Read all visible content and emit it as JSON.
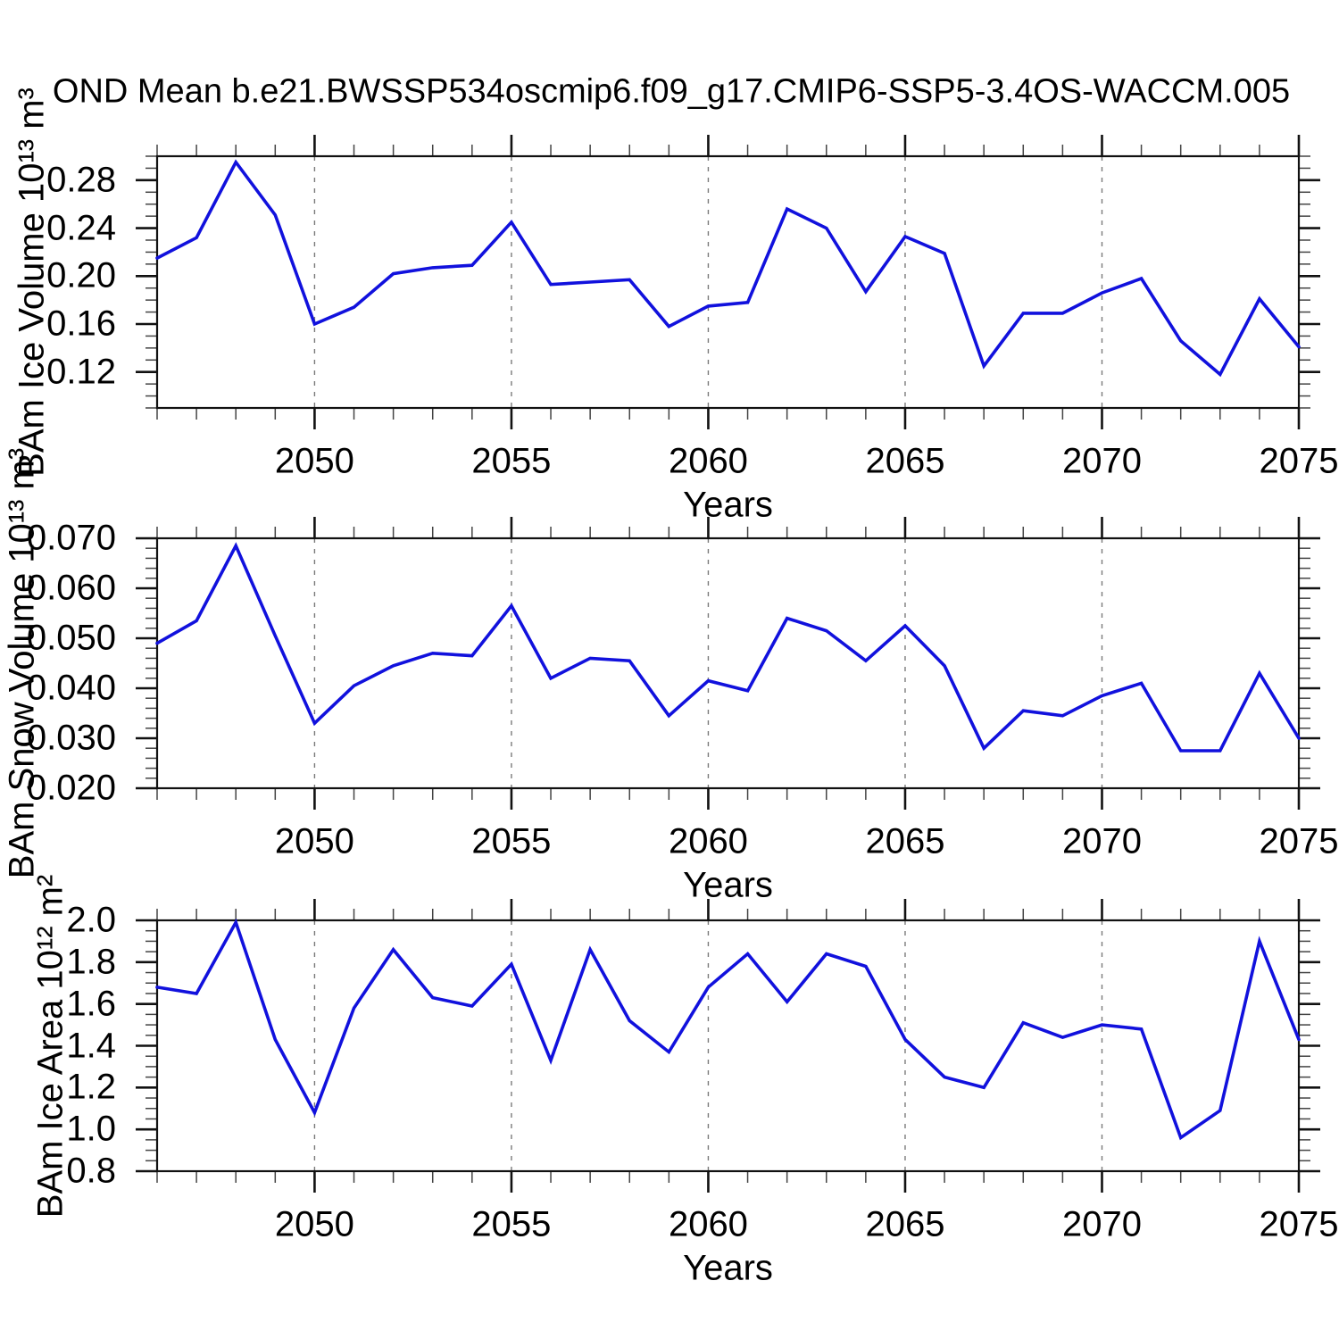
{
  "title": "OND Mean b.e21.BWSSP534oscmip6.f09_g17.CMIP6-SSP5-3.4OS-WACCM.005",
  "colors": {
    "line": "#1111dd",
    "axis": "#111111",
    "minor_tick": "#444444",
    "gridline": "#7a7a7a",
    "text": "#000000"
  },
  "chart_data": [
    {
      "type": "line",
      "ylabel": "BAm Ice Volume 10¹³ m³",
      "xlabel": "Years",
      "x": [
        2046,
        2047,
        2048,
        2049,
        2050,
        2051,
        2052,
        2053,
        2054,
        2055,
        2056,
        2057,
        2058,
        2059,
        2060,
        2061,
        2062,
        2063,
        2064,
        2065,
        2066,
        2067,
        2068,
        2069,
        2070,
        2071,
        2072,
        2073,
        2074,
        2075
      ],
      "values": [
        0.215,
        0.232,
        0.295,
        0.251,
        0.16,
        0.174,
        0.202,
        0.207,
        0.209,
        0.245,
        0.193,
        0.195,
        0.197,
        0.158,
        0.175,
        0.178,
        0.256,
        0.24,
        0.187,
        0.233,
        0.219,
        0.125,
        0.169,
        0.169,
        0.186,
        0.198,
        0.146,
        0.118,
        0.181,
        0.141
      ],
      "ylim": [
        0.09,
        0.3
      ],
      "yticks": {
        "values": [
          0.28,
          0.24,
          0.2,
          0.16,
          0.12
        ],
        "labels": [
          "0.28",
          "0.24",
          "0.20",
          "0.16",
          "0.12"
        ]
      },
      "y_minor_step": 0.01,
      "xlim": [
        2046,
        2075
      ],
      "xticks": {
        "values": [
          2050,
          2055,
          2060,
          2065,
          2070,
          2075
        ],
        "labels": [
          "2050",
          "2055",
          "2060",
          "2065",
          "2070",
          "2075"
        ]
      },
      "x_minor_step": 1,
      "gridlines_x": [
        2050,
        2055,
        2060,
        2065,
        2070
      ],
      "line_color": "#1111dd"
    },
    {
      "type": "line",
      "ylabel": "BAm Snow Volume 10¹³ m³",
      "xlabel": "Years",
      "x": [
        2046,
        2047,
        2048,
        2049,
        2050,
        2051,
        2052,
        2053,
        2054,
        2055,
        2056,
        2057,
        2058,
        2059,
        2060,
        2061,
        2062,
        2063,
        2064,
        2065,
        2066,
        2067,
        2068,
        2069,
        2070,
        2071,
        2072,
        2073,
        2074,
        2075
      ],
      "values": [
        0.049,
        0.0535,
        0.0685,
        0.0505,
        0.033,
        0.0405,
        0.0445,
        0.047,
        0.0465,
        0.0565,
        0.042,
        0.046,
        0.0455,
        0.0345,
        0.0415,
        0.0395,
        0.054,
        0.0515,
        0.0455,
        0.0525,
        0.0445,
        0.028,
        0.0355,
        0.0345,
        0.0385,
        0.041,
        0.0275,
        0.0275,
        0.043,
        0.03
      ],
      "ylim": [
        0.02,
        0.07
      ],
      "yticks": {
        "values": [
          0.07,
          0.06,
          0.05,
          0.04,
          0.03,
          0.02
        ],
        "labels": [
          "0.070",
          "0.060",
          "0.050",
          "0.040",
          "0.030",
          "0.020"
        ]
      },
      "y_minor_step": 0.002,
      "xlim": [
        2046,
        2075
      ],
      "xticks": {
        "values": [
          2050,
          2055,
          2060,
          2065,
          2070,
          2075
        ],
        "labels": [
          "2050",
          "2055",
          "2060",
          "2065",
          "2070",
          "2075"
        ]
      },
      "x_minor_step": 1,
      "gridlines_x": [
        2050,
        2055,
        2060,
        2065,
        2070
      ],
      "line_color": "#1111dd"
    },
    {
      "type": "line",
      "ylabel": "BAm Ice Area 10¹² m²",
      "xlabel": "Years",
      "x": [
        2046,
        2047,
        2048,
        2049,
        2050,
        2051,
        2052,
        2053,
        2054,
        2055,
        2056,
        2057,
        2058,
        2059,
        2060,
        2061,
        2062,
        2063,
        2064,
        2065,
        2066,
        2067,
        2068,
        2069,
        2070,
        2071,
        2072,
        2073,
        2074,
        2075
      ],
      "values": [
        1.68,
        1.65,
        1.99,
        1.43,
        1.08,
        1.58,
        1.86,
        1.63,
        1.59,
        1.79,
        1.33,
        1.86,
        1.52,
        1.37,
        1.68,
        1.84,
        1.61,
        1.84,
        1.78,
        1.43,
        1.25,
        1.2,
        1.51,
        1.44,
        1.5,
        1.48,
        0.96,
        1.09,
        1.9,
        1.43
      ],
      "ylim": [
        0.8,
        2.0
      ],
      "yticks": {
        "values": [
          2.0,
          1.8,
          1.6,
          1.4,
          1.2,
          1.0,
          0.8
        ],
        "labels": [
          "2.0",
          "1.8",
          "1.6",
          "1.4",
          "1.2",
          "1.0",
          "0.8"
        ]
      },
      "y_minor_step": 0.05,
      "xlim": [
        2046,
        2075
      ],
      "xticks": {
        "values": [
          2050,
          2055,
          2060,
          2065,
          2070,
          2075
        ],
        "labels": [
          "2050",
          "2055",
          "2060",
          "2065",
          "2070",
          "2075"
        ]
      },
      "x_minor_step": 1,
      "gridlines_x": [
        2050,
        2055,
        2060,
        2065,
        2070
      ],
      "line_color": "#1111dd"
    }
  ]
}
